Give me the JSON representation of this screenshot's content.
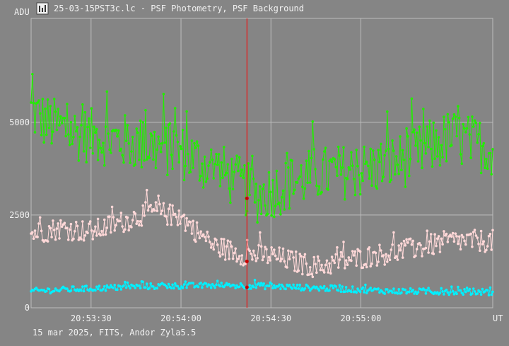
{
  "window": {
    "title": "25-03-15PST3c.lc - PSF Photometry, PSF Background",
    "icon": "chart-app-icon"
  },
  "footer": {
    "text": "15 mar 2025, FITS, Andor Zyla5.5"
  },
  "chart_data": {
    "type": "line",
    "ylabel": "ADU",
    "xlabel": "UT",
    "ylim": [
      0,
      7800
    ],
    "yticks": [
      0,
      2500,
      5000
    ],
    "yticklabels": [
      "0",
      "2500",
      "5000"
    ],
    "xlim": [
      "20:53:10",
      "20:55:44"
    ],
    "xticks": [
      "20:53:30",
      "20:54:00",
      "20:54:30",
      "20:55:00"
    ],
    "cursor_x": "20:54:22",
    "grid": true,
    "colors": {
      "green": "#22ee00",
      "pink": "#ffd8d8",
      "cyan": "#00f0ff",
      "cursor": "#ff0000",
      "cursor_point": "#cc0000"
    },
    "series": [
      {
        "color": "#22ee00",
        "profile_t": [
          0,
          5,
          15,
          30,
          50,
          65,
          75,
          85,
          95,
          110,
          125,
          140,
          154
        ],
        "profile_v": [
          5300,
          5000,
          4700,
          4500,
          4200,
          3600,
          3000,
          3300,
          3600,
          3700,
          4000,
          4600,
          4300
        ],
        "amplitude": 750
      },
      {
        "color": "#ffd8d8",
        "profile_t": [
          0,
          10,
          20,
          30,
          40,
          50,
          60,
          70,
          80,
          95,
          110,
          125,
          140,
          154
        ],
        "profile_v": [
          2000,
          2150,
          2050,
          2300,
          2600,
          2450,
          1700,
          1450,
          1400,
          1100,
          1350,
          1550,
          1800,
          1800
        ],
        "amplitude": 300
      },
      {
        "color": "#00f0ff",
        "profile_t": [
          0,
          20,
          40,
          60,
          70,
          80,
          100,
          120,
          154
        ],
        "profile_v": [
          450,
          520,
          580,
          600,
          600,
          580,
          520,
          450,
          420
        ],
        "amplitude": 80
      }
    ],
    "cursor_values": [
      2950,
      1250,
      550
    ]
  }
}
